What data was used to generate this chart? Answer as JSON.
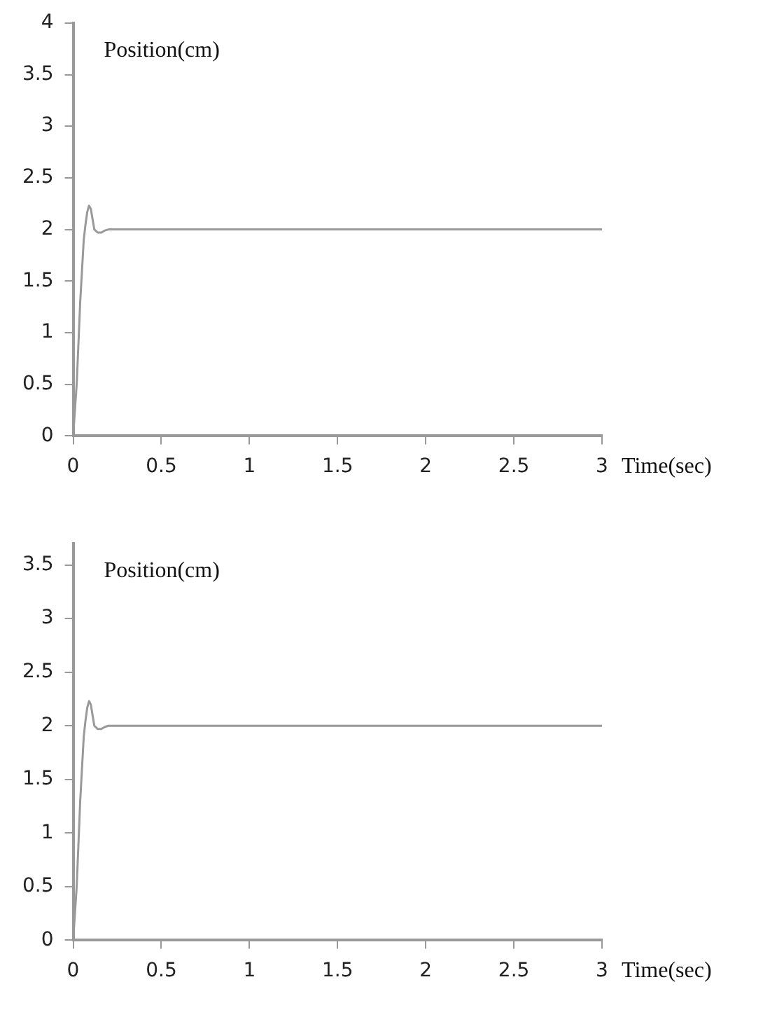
{
  "chart_data": [
    {
      "type": "line",
      "xlabel": "Time(sec)",
      "ylabel": "Position(cm)",
      "xlim": [
        0,
        3
      ],
      "xticks": [
        0,
        0.5,
        1,
        1.5,
        2,
        2.5,
        3
      ],
      "ylim": [
        0,
        4
      ],
      "yticks": [
        0,
        0.5,
        1,
        1.5,
        2,
        2.5,
        3,
        3.5,
        4
      ],
      "grid": false,
      "legend": false,
      "marker": "none",
      "line_style": "solid",
      "series": [
        {
          "color": "#999999",
          "x": [
            0,
            0.02,
            0.04,
            0.06,
            0.07,
            0.08,
            0.09,
            0.1,
            0.11,
            0.12,
            0.14,
            0.16,
            0.18,
            0.2,
            3
          ],
          "values": [
            0,
            0.5,
            1.3,
            1.9,
            2.05,
            2.17,
            2.23,
            2.2,
            2.1,
            2.0,
            1.97,
            1.97,
            1.99,
            2,
            2
          ]
        }
      ]
    },
    {
      "type": "line",
      "xlabel": "Time(sec)",
      "ylabel": "Position(cm)",
      "xlim": [
        0,
        3
      ],
      "xticks": [
        0,
        0.5,
        1,
        1.5,
        2,
        2.5,
        3
      ],
      "ylim": [
        0,
        3.7
      ],
      "yticks": [
        0,
        0.5,
        1,
        1.5,
        2,
        2.5,
        3,
        3.5
      ],
      "grid": false,
      "legend": false,
      "marker": "none",
      "line_style": "solid",
      "series": [
        {
          "color": "#999999",
          "x": [
            0,
            0.02,
            0.04,
            0.06,
            0.07,
            0.08,
            0.09,
            0.1,
            0.11,
            0.12,
            0.14,
            0.16,
            0.18,
            0.2,
            3
          ],
          "values": [
            0,
            0.5,
            1.3,
            1.9,
            2.05,
            2.17,
            2.23,
            2.2,
            2.1,
            2.0,
            1.97,
            1.97,
            1.99,
            2,
            2
          ]
        }
      ]
    }
  ]
}
